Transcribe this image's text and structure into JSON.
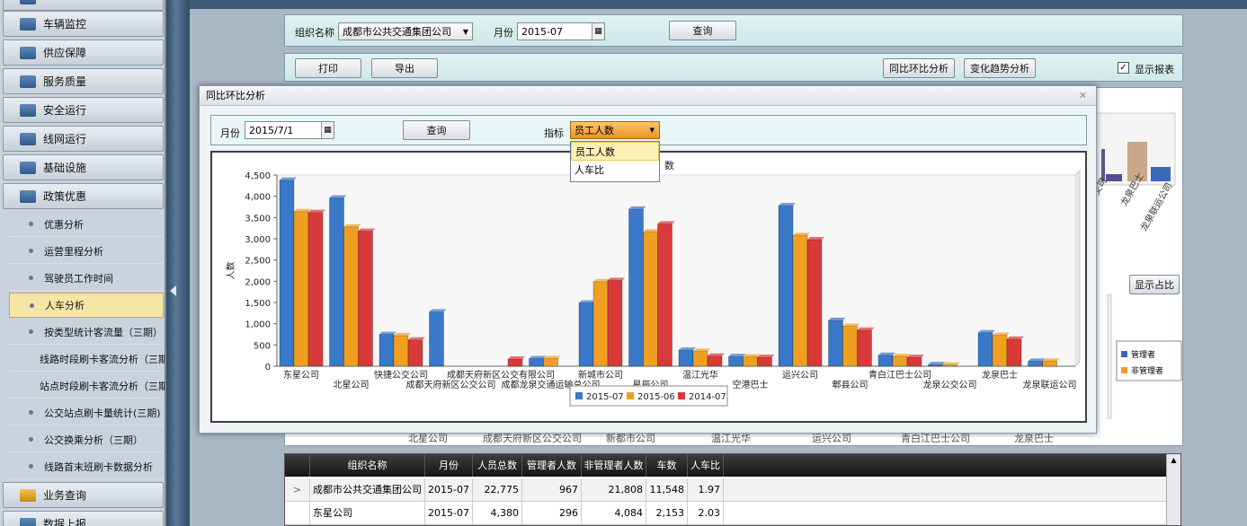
{
  "sidebar": {
    "items": [
      {
        "label": "车辆监控",
        "top": 12
      },
      {
        "label": "供应保障",
        "top": 44
      },
      {
        "label": "服务质量",
        "top": 76
      },
      {
        "label": "安全运行",
        "top": 108
      },
      {
        "label": "线网运行",
        "top": 140
      },
      {
        "label": "基础设施",
        "top": 172
      },
      {
        "label": "政策优惠",
        "top": 204
      }
    ],
    "sub_items": [
      "优惠分析",
      "运营里程分析",
      "驾驶员工作时间",
      "人车分析",
      "按类型统计客流量（三期）",
      "线路时段刷卡客流分析（三期）",
      "站点时段刷卡客流分析（三期）",
      "公交站点刷卡量统计(三期)",
      "公交换乘分析（三期）",
      "线路首末班刷卡数据分析"
    ],
    "active_sub": "人车分析",
    "bottom_items": [
      "业务查询",
      "数据上报"
    ]
  },
  "filter": {
    "org_label": "组织名称",
    "org_value": "成都市公共交通集团公司",
    "month_label": "月份",
    "month_value": "2015-07",
    "query_btn": "查询"
  },
  "toolbar": {
    "print": "打印",
    "export": "导出",
    "yoy_btn": "同比环比分析",
    "trend_btn": "变化趋势分析",
    "show_report": "显示报表"
  },
  "background": {
    "show_ratio_btn": "显示占比",
    "legend": [
      "管理者",
      "非管理者"
    ],
    "x_labels": [
      "龙泉巴士",
      "龙泉联运公司"
    ],
    "x_labels_hidden": [
      "北星公司",
      "成都天府新区公交公司",
      "新都市公司",
      "温江光华",
      "运兴公司",
      "青白江巴士公司",
      "龙泉巴士"
    ]
  },
  "table": {
    "columns": [
      "组织名称",
      "月份",
      "人员总数",
      "管理者人数",
      "非管理者人数",
      "车数",
      "人车比"
    ],
    "rows": [
      [
        "成都市公共交通集团公司",
        "2015-07",
        "22,775",
        "967",
        "21,808",
        "11,548",
        "1.97"
      ],
      [
        "东星公司",
        "2015-07",
        "4,380",
        "296",
        "4,084",
        "2,153",
        "2.03"
      ]
    ]
  },
  "modal": {
    "title": "同比环比分析",
    "month_label": "月份",
    "month_value": "2015/7/1",
    "query_btn": "查询",
    "metric_label": "指标",
    "metric_value": "员工人数",
    "metric_options": [
      "员工人数",
      "人车比"
    ],
    "chart_title_fragment": "数"
  },
  "chart_data": {
    "type": "bar",
    "ylabel": "人数",
    "ylim": [
      0,
      4500
    ],
    "yticks": [
      "0",
      "250",
      "500",
      "750",
      "1,000",
      "1,250",
      "1,500",
      "1,750",
      "2,000",
      "2,250",
      "2,500",
      "2,750",
      "3,000",
      "3,250",
      "3,500",
      "3,750",
      "4,000",
      "4,250",
      "4,500"
    ],
    "categories": [
      "东星公司",
      "北星公司",
      "快捷公交公司",
      "成都天府新区公交公司",
      "成都天府新区公交有限公司",
      "成都龙泉交通运输总公司",
      "新城市公司",
      "星辰公司",
      "温江光华",
      "空港巴士",
      "运兴公司",
      "郫县公司",
      "青白江巴士公司",
      "龙泉公交公司",
      "龙泉巴士",
      "龙泉联运公司"
    ],
    "series": [
      {
        "name": "2015-07",
        "color": "#3a78c8",
        "values": [
          4380,
          3960,
          750,
          1280,
          0,
          180,
          1490,
          3700,
          380,
          230,
          3780,
          1080,
          260,
          40,
          790,
          120
        ]
      },
      {
        "name": "2015-06",
        "color": "#f0a020",
        "values": [
          3640,
          3280,
          720,
          0,
          0,
          180,
          1990,
          3160,
          350,
          220,
          3080,
          940,
          230,
          30,
          730,
          120
        ]
      },
      {
        "name": "2014-07",
        "color": "#d83a3a",
        "values": [
          3620,
          3180,
          620,
          0,
          170,
          0,
          2020,
          3350,
          240,
          210,
          2980,
          850,
          210,
          0,
          640,
          0
        ]
      }
    ],
    "legend_position": "bottom"
  }
}
